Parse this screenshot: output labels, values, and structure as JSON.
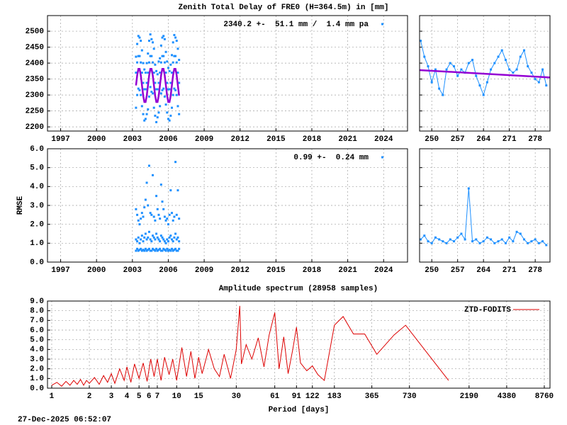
{
  "chart_data": [
    {
      "type": "scatter",
      "title": "Zenith Total Delay of FRE0 (H=364.5m) in [mm]",
      "xlim": [
        1995.9,
        2026
      ],
      "xticks": [
        1997,
        2000,
        2003,
        2006,
        2009,
        2012,
        2015,
        2018,
        2021,
        2024
      ],
      "ylim": [
        2187,
        2549
      ],
      "yticks": [
        2200,
        2250,
        2300,
        2350,
        2400,
        2450,
        2500
      ],
      "grid": true,
      "legend": "top-right",
      "x": [
        2003.3,
        2003.4,
        2003.5,
        2003.6,
        2003.7,
        2003.8,
        2003.9,
        2004.0,
        2004.1,
        2004.2,
        2004.3,
        2004.4,
        2004.5,
        2004.6,
        2004.7,
        2004.8,
        2004.9,
        2005.0,
        2005.1,
        2005.2,
        2005.3,
        2005.4,
        2005.5,
        2005.6,
        2005.7,
        2005.8,
        2005.9,
        2006.0,
        2006.1,
        2006.2,
        2006.3,
        2006.4,
        2006.5,
        2006.6,
        2006.7,
        2006.8,
        2006.9
      ],
      "series": [
        {
          "name": "2340.2 +-  51.1 mm /  1.4 mm pa",
          "color": "#1e90ff",
          "values": [
            2420,
            2460,
            2485,
            2480,
            2470,
            2440,
            2400,
            2380,
            2370,
            2400,
            2430,
            2470,
            2490,
            2475,
            2465,
            2445,
            2395,
            2375,
            2365,
            2405,
            2415,
            2455,
            2480,
            2485,
            2475,
            2435,
            2405,
            2385,
            2375,
            2395,
            2425,
            2465,
            2488,
            2480,
            2470,
            2445,
            2410
          ]
        },
        {
          "color": "#1e90ff",
          "values": [
            2370,
            2402,
            2422,
            2422,
            2402,
            2370,
            2338,
            2318,
            2318,
            2338,
            2370,
            2402,
            2422,
            2422,
            2402,
            2370,
            2338,
            2318,
            2318,
            2338,
            2370,
            2402,
            2422,
            2422,
            2402,
            2370,
            2338,
            2318,
            2318,
            2338,
            2370,
            2402,
            2422,
            2422,
            2402,
            2370,
            2338
          ]
        },
        {
          "color": "#1e90ff",
          "values": [
            2260,
            2300,
            2320,
            2315,
            2300,
            2265,
            2240,
            2220,
            2225,
            2240,
            2255,
            2295,
            2325,
            2310,
            2305,
            2260,
            2235,
            2215,
            2230,
            2245,
            2265,
            2305,
            2315,
            2320,
            2295,
            2270,
            2245,
            2225,
            2220,
            2235,
            2260,
            2300,
            2320,
            2315,
            2300,
            2265,
            2240
          ]
        },
        {
          "type": "line",
          "color": "#9400d3",
          "values": [
            2330,
            2362,
            2382,
            2382,
            2362,
            2330,
            2298,
            2278,
            2278,
            2298,
            2330,
            2362,
            2382,
            2382,
            2362,
            2330,
            2298,
            2278,
            2278,
            2298,
            2330,
            2362,
            2382,
            2382,
            2362,
            2330,
            2298,
            2278,
            2278,
            2298,
            2330,
            2362,
            2382,
            2382,
            2362,
            2330,
            2298
          ]
        }
      ]
    },
    {
      "type": "scatter",
      "xlim": [
        246.7,
        282
      ],
      "xticks": [
        250,
        257,
        264,
        271,
        278
      ],
      "ylim": [
        2187,
        2549
      ],
      "yticks": [
        2200,
        2250,
        2300,
        2350,
        2400,
        2450,
        2500
      ],
      "grid": true,
      "show_ytick_labels": false,
      "series": [
        {
          "type": "linespoints",
          "color": "#1e90ff",
          "x": [
            247,
            248,
            249,
            250,
            251,
            252,
            253,
            254,
            255,
            256,
            257,
            258,
            259,
            260,
            261,
            262,
            263,
            264,
            265,
            266,
            267,
            268,
            269,
            270,
            271,
            272,
            273,
            274,
            275,
            276,
            277,
            278,
            279,
            280,
            281
          ],
          "values": [
            2470,
            2420,
            2390,
            2340,
            2380,
            2320,
            2300,
            2380,
            2400,
            2390,
            2360,
            2380,
            2370,
            2400,
            2410,
            2360,
            2330,
            2300,
            2340,
            2380,
            2400,
            2420,
            2440,
            2410,
            2380,
            2370,
            2380,
            2420,
            2440,
            2390,
            2370,
            2350,
            2340,
            2380,
            2330
          ]
        },
        {
          "type": "line",
          "color": "#9400d3",
          "x": [
            246.7,
            282
          ],
          "values": [
            2378,
            2355
          ]
        }
      ]
    },
    {
      "type": "scatter",
      "ylabel": "RMSE",
      "xlim": [
        1995.9,
        2026
      ],
      "xticks": [
        1997,
        2000,
        2003,
        2006,
        2009,
        2012,
        2015,
        2018,
        2021,
        2024
      ],
      "ylim": [
        0,
        6
      ],
      "yticks": [
        {
          "value": 0,
          "label": "0.0"
        },
        {
          "value": 1,
          "label": "1.0"
        },
        {
          "value": 2,
          "label": "2.0"
        },
        {
          "value": 3,
          "label": "3.0"
        },
        {
          "value": 4,
          "label": "4.0"
        },
        {
          "value": 5,
          "label": "5.0"
        },
        {
          "value": 6,
          "label": "6.0"
        }
      ],
      "grid": true,
      "legend": "top-right",
      "x": [
        2003.3,
        2003.4,
        2003.5,
        2003.6,
        2003.7,
        2003.8,
        2003.9,
        2004.0,
        2004.1,
        2004.2,
        2004.3,
        2004.4,
        2004.5,
        2004.6,
        2004.7,
        2004.8,
        2004.9,
        2005.0,
        2005.1,
        2005.2,
        2005.3,
        2005.4,
        2005.5,
        2005.6,
        2005.7,
        2005.8,
        2005.9,
        2006.0,
        2006.1,
        2006.2,
        2006.3,
        2006.4,
        2006.5,
        2006.6,
        2006.7,
        2006.8,
        2006.9
      ],
      "series": [
        {
          "name": "0.99 +-  0.24 mm",
          "color": "#1e90ff",
          "values": [
            2.8,
            2.5,
            2.2,
            2.0,
            2.3,
            2.6,
            2.4,
            2.9,
            3.3,
            4.2,
            3.0,
            5.1,
            2.6,
            2.5,
            4.6,
            2.4,
            2.2,
            3.5,
            2.8,
            2.5,
            2.3,
            4.1,
            3.2,
            2.8,
            2.4,
            2.2,
            2.3,
            2.0,
            2.5,
            3.8,
            2.6,
            2.2,
            2.4,
            5.3,
            2.5,
            3.8,
            2.3
          ]
        },
        {
          "color": "#1e90ff",
          "values": [
            1.2,
            1.1,
            1.3,
            1.0,
            1.2,
            1.4,
            1.1,
            1.3,
            1.5,
            1.2,
            1.3,
            1.6,
            1.2,
            1.1,
            1.4,
            1.3,
            1.2,
            1.5,
            1.3,
            1.2,
            1.1,
            1.4,
            1.3,
            1.2,
            1.1,
            1.0,
            1.2,
            1.1,
            1.3,
            1.4,
            1.2,
            1.1,
            1.3,
            1.5,
            1.2,
            1.3,
            1.1
          ]
        },
        {
          "color": "#1e90ff",
          "values": [
            0.6,
            0.7,
            0.6,
            0.65,
            0.7,
            0.6,
            0.65,
            0.6,
            0.7,
            0.6,
            0.65,
            0.7,
            0.6,
            0.6,
            0.7,
            0.65,
            0.6,
            0.7,
            0.6,
            0.65,
            0.7,
            0.6,
            0.6,
            0.7,
            0.65,
            0.6,
            0.7,
            0.6,
            0.65,
            0.6,
            0.7,
            0.6,
            0.65,
            0.7,
            0.6,
            0.6,
            0.7
          ]
        }
      ]
    },
    {
      "type": "scatter",
      "xlim": [
        246.7,
        282
      ],
      "xticks": [
        250,
        257,
        264,
        271,
        278
      ],
      "ylim": [
        0,
        6
      ],
      "yticks": [
        0,
        1,
        2,
        3,
        4,
        5,
        6
      ],
      "grid": true,
      "show_ytick_labels": false,
      "series": [
        {
          "type": "linespoints",
          "color": "#1e90ff",
          "x": [
            247,
            248,
            249,
            250,
            251,
            252,
            253,
            254,
            255,
            256,
            257,
            258,
            259,
            260,
            261,
            262,
            263,
            264,
            265,
            266,
            267,
            268,
            269,
            270,
            271,
            272,
            273,
            274,
            275,
            276,
            277,
            278,
            279,
            280,
            281
          ],
          "values": [
            1.2,
            1.4,
            1.1,
            1.0,
            1.3,
            1.2,
            1.1,
            1.0,
            1.2,
            1.1,
            1.3,
            1.5,
            1.2,
            3.9,
            1.1,
            1.2,
            1.0,
            1.1,
            1.3,
            1.2,
            1.0,
            1.1,
            1.2,
            1.0,
            1.3,
            1.1,
            1.6,
            1.5,
            1.2,
            1.0,
            1.1,
            1.2,
            1.0,
            1.1,
            0.9
          ]
        }
      ]
    },
    {
      "type": "line",
      "title": "Amplitude spectrum (28958 samples)",
      "xlabel": "Period [days]",
      "xlog": true,
      "xlim": [
        0.925,
        9730
      ],
      "xticks": [
        1,
        2,
        3,
        4,
        5,
        6,
        7,
        10,
        15,
        30,
        61,
        91,
        122,
        183,
        365,
        730,
        2190,
        4380,
        8760
      ],
      "ylim": [
        0,
        9
      ],
      "yticks": [
        {
          "value": 0,
          "label": "0.0"
        },
        {
          "value": 1,
          "label": "1.0"
        },
        {
          "value": 2,
          "label": "2.0"
        },
        {
          "value": 3,
          "label": "3.0"
        },
        {
          "value": 4,
          "label": "4.0"
        },
        {
          "value": 5,
          "label": "5.0"
        },
        {
          "value": 6,
          "label": "6.0"
        },
        {
          "value": 7,
          "label": "7.0"
        },
        {
          "value": 8,
          "label": "8.0"
        },
        {
          "value": 9,
          "label": "9.0"
        }
      ],
      "grid": true,
      "legend": "top-right",
      "series": [
        {
          "name": "ZTD-FODITS",
          "color": "#dd0000",
          "x": [
            1,
            1.1,
            1.2,
            1.3,
            1.4,
            1.5,
            1.6,
            1.7,
            1.8,
            1.9,
            2,
            2.2,
            2.4,
            2.6,
            2.8,
            3,
            3.2,
            3.5,
            3.8,
            4,
            4.3,
            4.6,
            5,
            5.4,
            5.8,
            6.2,
            6.6,
            7,
            7.5,
            8,
            8.7,
            9.3,
            10,
            11,
            12,
            13,
            14,
            15,
            16,
            18,
            20,
            22,
            24,
            27,
            30,
            32,
            33,
            36,
            40,
            45,
            50,
            55,
            61,
            66,
            72,
            78,
            85,
            91,
            98,
            110,
            122,
            135,
            152,
            183,
            215,
            260,
            320,
            400,
            550,
            680,
            1500
          ],
          "values": [
            0.3,
            0.6,
            0.2,
            0.7,
            0.3,
            0.8,
            0.4,
            0.9,
            0.3,
            0.8,
            0.5,
            1.1,
            0.4,
            1.3,
            0.6,
            1.5,
            0.5,
            2.0,
            0.8,
            2.2,
            0.6,
            2.5,
            1.0,
            2.6,
            0.7,
            3.0,
            1.2,
            3.0,
            0.8,
            3.2,
            1.4,
            3.0,
            0.8,
            4.2,
            1.2,
            3.8,
            1.0,
            3.2,
            1.5,
            4.0,
            2.0,
            1.2,
            3.5,
            1.0,
            4.0,
            8.5,
            2.5,
            4.5,
            3.0,
            5.2,
            2.2,
            5.5,
            7.8,
            2.0,
            5.3,
            1.5,
            4.0,
            6.3,
            2.6,
            1.8,
            2.3,
            1.4,
            0.8,
            6.5,
            7.4,
            5.6,
            5.6,
            3.5,
            5.5,
            6.5,
            0.8
          ]
        }
      ]
    }
  ],
  "timestamp": "27-Dec-2025 06:52:07"
}
